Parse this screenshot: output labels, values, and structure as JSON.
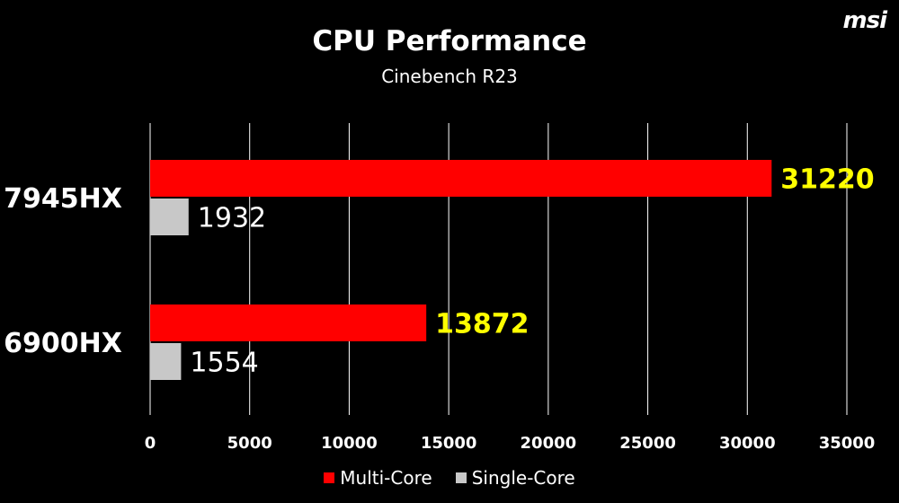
{
  "brand": {
    "logo_text": "msi"
  },
  "chart_data": {
    "type": "bar",
    "orientation": "horizontal",
    "title": "CPU Performance",
    "subtitle": "Cinebench R23",
    "categories": [
      "7945HX",
      "6900HX"
    ],
    "series": [
      {
        "name": "Multi-Core",
        "values": [
          31220,
          13872
        ],
        "color": "#ff0000",
        "label_color": "#ffff00"
      },
      {
        "name": "Single-Core",
        "values": [
          1932,
          1554
        ],
        "color": "#c8c8c8",
        "label_color": "#ffffff"
      }
    ],
    "xlim": [
      0,
      35000
    ],
    "xticks": [
      0,
      5000,
      10000,
      15000,
      20000,
      25000,
      30000,
      35000
    ],
    "grid": true,
    "legend_position": "bottom"
  }
}
